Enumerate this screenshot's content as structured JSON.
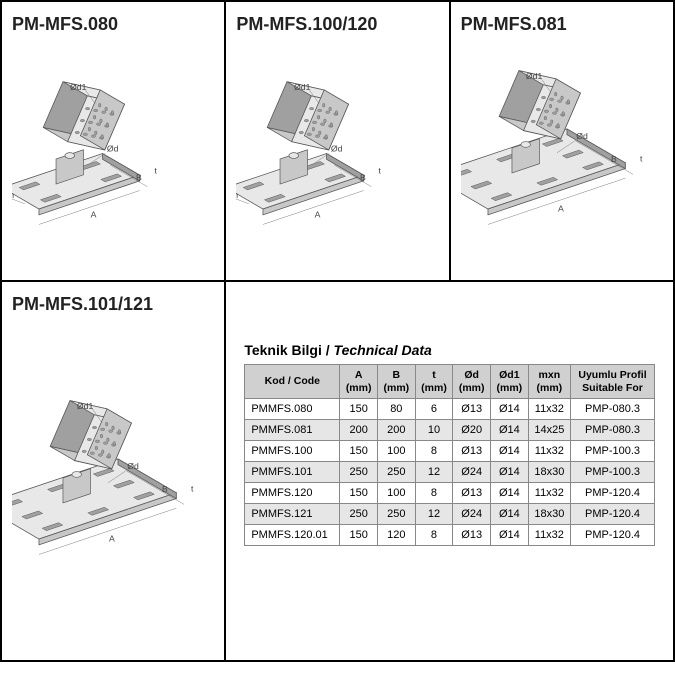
{
  "cards": [
    {
      "title": "PM-MFS.080",
      "base": "small"
    },
    {
      "title": "PM-MFS.100/120",
      "base": "small"
    },
    {
      "title": "PM-MFS.081",
      "base": "large"
    },
    {
      "title": "PM-MFS.101/121",
      "base": "large"
    }
  ],
  "tech": {
    "title_main": "Teknik Bilgi /",
    "title_ital": "Technical Data",
    "columns": [
      "Kod / Code",
      "A<br>(mm)",
      "B<br>(mm)",
      "t<br>(mm)",
      "Ød<br>(mm)",
      "Ød1<br>(mm)",
      "mxn<br>(mm)",
      "Uyumlu Profil<br>Suitable For"
    ],
    "rows": [
      [
        "PMMFS.080",
        "150",
        "80",
        "6",
        "Ø13",
        "Ø14",
        "11x32",
        "PMP-080.3"
      ],
      [
        "PMMFS.081",
        "200",
        "200",
        "10",
        "Ø20",
        "Ø14",
        "14x25",
        "PMP-080.3"
      ],
      [
        "PMMFS.100",
        "150",
        "100",
        "8",
        "Ø13",
        "Ø14",
        "11x32",
        "PMP-100.3"
      ],
      [
        "PMMFS.101",
        "250",
        "250",
        "12",
        "Ø24",
        "Ø14",
        "18x30",
        "PMP-100.3"
      ],
      [
        "PMMFS.120",
        "150",
        "100",
        "8",
        "Ø13",
        "Ø14",
        "11x32",
        "PMP-120.4"
      ],
      [
        "PMMFS.121",
        "250",
        "250",
        "12",
        "Ø24",
        "Ø14",
        "18x30",
        "PMP-120.4"
      ],
      [
        "PMMFS.120.01",
        "150",
        "120",
        "8",
        "Ø13",
        "Ø14",
        "11x32",
        "PMP-120.4"
      ]
    ]
  },
  "labels": {
    "od1": "Ød1",
    "od": "Ød",
    "mxn": "mxn",
    "A": "A",
    "B": "B",
    "t": "t"
  },
  "colors": {
    "metal_light": "#e8e8e8",
    "metal_mid": "#c8c8c8",
    "metal_dark": "#a0a0a0",
    "line": "#555",
    "dim": "#777",
    "text": "#444"
  }
}
